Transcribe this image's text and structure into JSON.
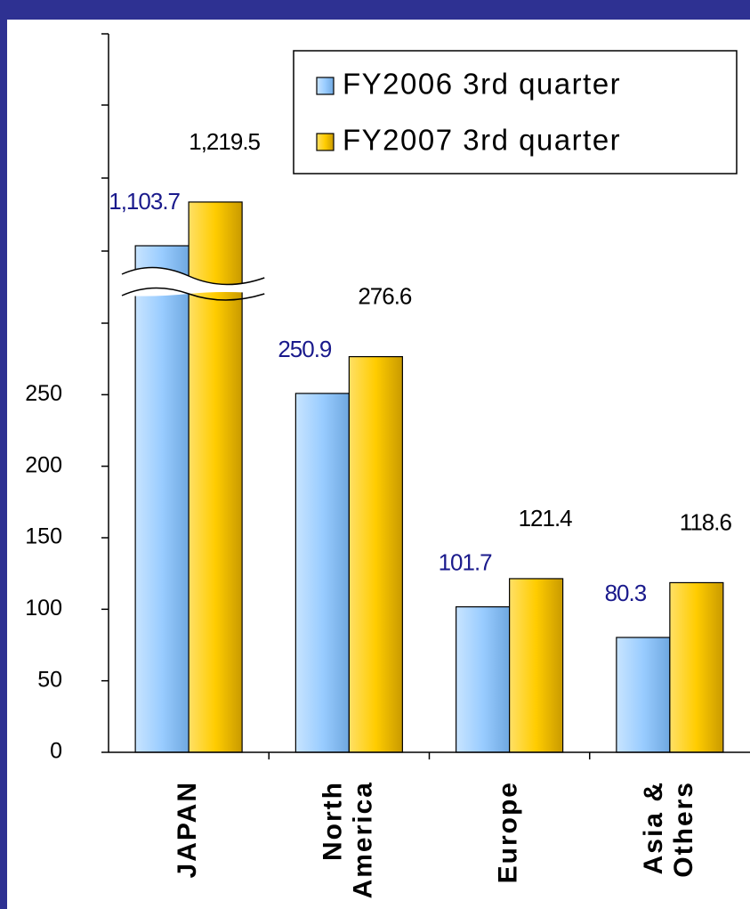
{
  "chart_data": {
    "type": "bar",
    "categories": [
      "JAPAN",
      "North\nAmerica",
      "Europe",
      "Asia &\nOthers"
    ],
    "series": [
      {
        "name": "FY2006 3rd quarter",
        "color": "#99ccff",
        "label_color": "#1a1a8c",
        "values": [
          1103.7,
          250.9,
          101.7,
          80.3
        ],
        "value_labels": [
          "1,103.7",
          "250.9",
          "101.7",
          "80.3"
        ]
      },
      {
        "name": "FY2007 3rd quarter",
        "color": "#ffcc00",
        "label_color": "#000000",
        "values": [
          1219.5,
          276.6,
          121.4,
          118.6
        ],
        "value_labels": [
          "1,219.5",
          "276.6",
          "121.4",
          "118.6"
        ]
      }
    ],
    "ylim": [
      0,
      300
    ],
    "ylim_upper": [
      1000,
      1665
    ],
    "yticks": [
      0,
      50,
      100,
      150,
      200,
      250
    ],
    "legend": "top-right"
  }
}
